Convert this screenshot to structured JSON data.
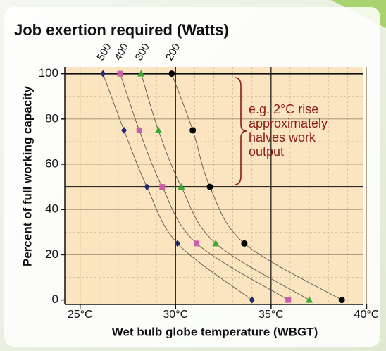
{
  "chart_data": {
    "type": "line",
    "title": "Job exertion required (Watts)",
    "xlabel": "Wet bulb globe temperature (WBGT)",
    "ylabel": "Percent of full working capacity",
    "xlim": [
      24.2,
      39.8
    ],
    "ylim": [
      -2,
      103
    ],
    "xticks": [
      {
        "value": 25,
        "label": "25°C"
      },
      {
        "value": 30,
        "label": "30°C"
      },
      {
        "value": 35,
        "label": "35°C"
      },
      {
        "value": 40,
        "label": "40°C"
      }
    ],
    "yticks": [
      0,
      20,
      40,
      60,
      80,
      100
    ],
    "grid": true,
    "reference_lines": {
      "x": [
        30,
        35
      ],
      "y": [
        50,
        100
      ]
    },
    "series": [
      {
        "name": "500",
        "color": "#1e2a6e",
        "marker": "diamond",
        "x": [
          26.2,
          27.3,
          28.5,
          30.1,
          34.0
        ],
        "values": [
          100,
          75,
          50,
          25,
          0
        ]
      },
      {
        "name": "400",
        "color": "#c85fa8",
        "marker": "square",
        "x": [
          27.1,
          28.1,
          29.3,
          31.1,
          35.9
        ],
        "values": [
          100,
          75,
          50,
          25,
          0
        ]
      },
      {
        "name": "300",
        "color": "#3aaa35",
        "marker": "triangle",
        "x": [
          28.2,
          29.1,
          30.3,
          32.1,
          37.0
        ],
        "values": [
          100,
          75,
          50,
          25,
          0
        ]
      },
      {
        "name": "200",
        "color": "#000000",
        "marker": "circle",
        "x": [
          29.8,
          30.9,
          31.8,
          33.6,
          38.7
        ],
        "values": [
          100,
          75,
          50,
          25,
          0
        ]
      }
    ],
    "annotation": {
      "lines": [
        "e.g. 2°C rise",
        "approximately",
        "halves work",
        "output"
      ],
      "color": "#8b1a1a"
    }
  }
}
